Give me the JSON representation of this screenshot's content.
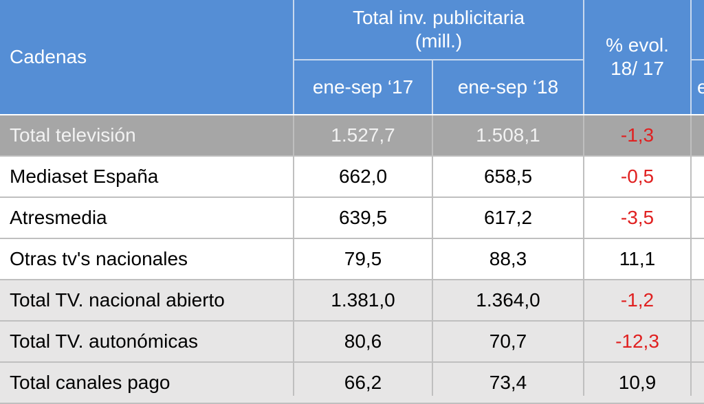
{
  "header": {
    "cadenas": "Cadenas",
    "total_line1": "Total inv. publicitaria",
    "total_line2": "(mill.)",
    "evol_line1": "% evol.",
    "evol_line2": "18/ 17",
    "col_2017": "ene-sep ‘17",
    "col_2018": "ene-sep ‘18",
    "partial_right": "e"
  },
  "colors": {
    "header_bg": "#558ed5",
    "total_row_bg": "#a6a6a6",
    "grey_row_bg": "#e7e6e6",
    "negative": "#e02020"
  },
  "rows": [
    {
      "name": "Total televisión",
      "v17": "1.527,7",
      "v18": "1.508,1",
      "evol": "-1,3"
    },
    {
      "name": "Mediaset España",
      "v17": "662,0",
      "v18": "658,5",
      "evol": "-0,5"
    },
    {
      "name": "Atresmedia",
      "v17": "639,5",
      "v18": "617,2",
      "evol": "-3,5"
    },
    {
      "name": "Otras tv's nacionales",
      "v17": "79,5",
      "v18": "88,3",
      "evol": "11,1"
    },
    {
      "name": "Total TV. nacional abierto",
      "v17": "1.381,0",
      "v18": "1.364,0",
      "evol": "-1,2"
    },
    {
      "name": "Total TV. autonómicas",
      "v17": "80,6",
      "v18": "70,7",
      "evol": "-12,3"
    },
    {
      "name": "Total canales pago",
      "v17": "66,2",
      "v18": "73,4",
      "evol": "10,9"
    }
  ]
}
